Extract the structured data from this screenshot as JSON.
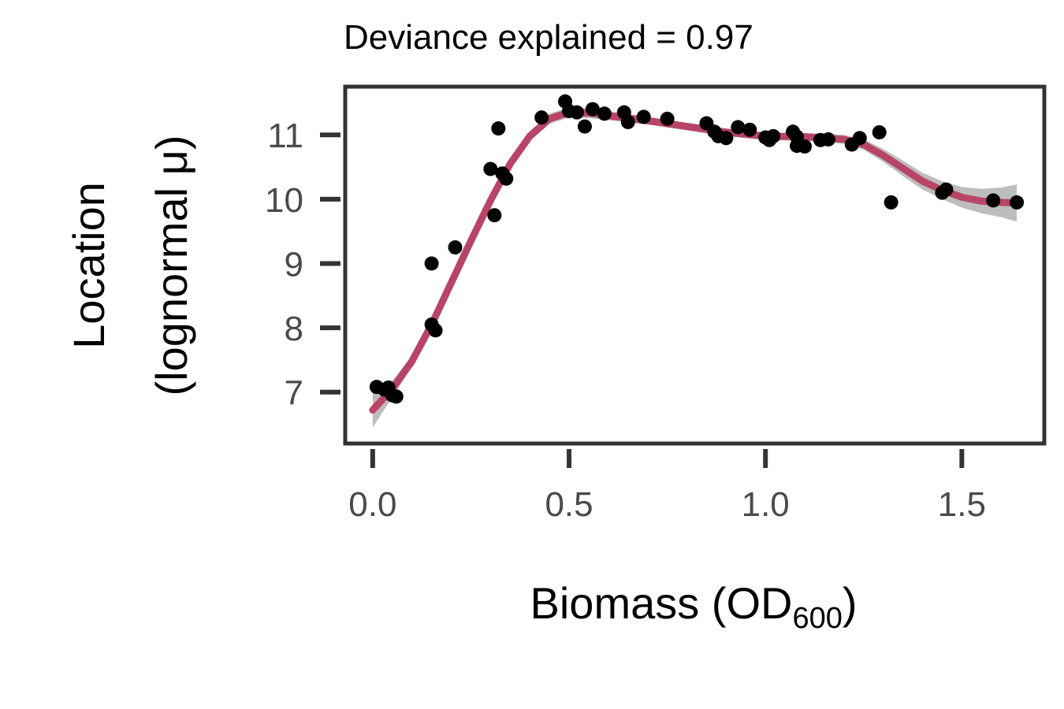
{
  "chart_data": {
    "type": "scatter",
    "title": "Deviance explained = 0.97",
    "xlabel": "Biomass (OD",
    "xlabel_subscript": "600",
    "xlabel_close": ")",
    "ylabel_line1": "Location",
    "ylabel_line2": "(lognormal  μ)",
    "xlim": [
      -0.07,
      1.71
    ],
    "ylim": [
      6.2,
      11.75
    ],
    "xticks": [
      0.0,
      0.5,
      1.0,
      1.5
    ],
    "xtick_labels": [
      "0.0",
      "0.5",
      "1.0",
      "1.5"
    ],
    "yticks": [
      7,
      8,
      9,
      10,
      11
    ],
    "ytick_labels": [
      "7",
      "8",
      "9",
      "10",
      "11"
    ],
    "grid": false,
    "legend": "none",
    "colors": {
      "fit_line": "#b84467",
      "ci_band": "#bdbdbd",
      "points": "#000000",
      "axes": "#333333"
    },
    "fit": {
      "x": [
        0.0,
        0.05,
        0.1,
        0.15,
        0.2,
        0.25,
        0.3,
        0.35,
        0.4,
        0.45,
        0.5,
        0.55,
        0.6,
        0.7,
        0.8,
        0.9,
        1.0,
        1.1,
        1.2,
        1.25,
        1.3,
        1.35,
        1.4,
        1.45,
        1.5,
        1.55,
        1.6,
        1.64
      ],
      "y": [
        6.72,
        7.05,
        7.48,
        8.05,
        8.7,
        9.35,
        9.98,
        10.55,
        10.98,
        11.25,
        11.35,
        11.34,
        11.3,
        11.22,
        11.13,
        11.04,
        10.98,
        10.97,
        10.93,
        10.85,
        10.68,
        10.48,
        10.28,
        10.14,
        10.03,
        9.97,
        9.95,
        9.94
      ],
      "lower": [
        6.45,
        6.92,
        7.4,
        7.98,
        8.63,
        9.28,
        9.9,
        10.47,
        10.9,
        11.17,
        11.27,
        11.26,
        11.23,
        11.16,
        11.07,
        10.98,
        10.92,
        10.91,
        10.86,
        10.77,
        10.58,
        10.36,
        10.15,
        10.0,
        9.87,
        9.78,
        9.72,
        9.65
      ],
      "upper": [
        6.98,
        7.18,
        7.56,
        8.12,
        8.77,
        9.42,
        10.06,
        10.63,
        11.06,
        11.33,
        11.43,
        11.42,
        11.37,
        11.28,
        11.19,
        11.1,
        11.04,
        11.03,
        11.0,
        10.93,
        10.78,
        10.6,
        10.41,
        10.28,
        10.19,
        10.16,
        10.18,
        10.23
      ]
    },
    "points": {
      "x": [
        0.01,
        0.03,
        0.04,
        0.05,
        0.06,
        0.15,
        0.15,
        0.16,
        0.21,
        0.3,
        0.31,
        0.32,
        0.33,
        0.34,
        0.43,
        0.49,
        0.5,
        0.52,
        0.54,
        0.56,
        0.59,
        0.64,
        0.65,
        0.69,
        0.75,
        0.85,
        0.87,
        0.88,
        0.9,
        0.93,
        0.96,
        1.0,
        1.01,
        1.02,
        1.07,
        1.08,
        1.08,
        1.1,
        1.14,
        1.16,
        1.22,
        1.24,
        1.29,
        1.32,
        1.45,
        1.46,
        1.58,
        1.64
      ],
      "y": [
        7.08,
        7.04,
        7.07,
        6.95,
        6.93,
        9.0,
        8.05,
        7.96,
        9.25,
        10.47,
        9.75,
        11.1,
        10.4,
        10.32,
        11.27,
        11.52,
        11.37,
        11.35,
        11.13,
        11.4,
        11.33,
        11.35,
        11.2,
        11.28,
        11.25,
        11.18,
        11.05,
        10.98,
        10.95,
        11.12,
        11.08,
        10.96,
        10.92,
        10.98,
        11.05,
        10.97,
        10.83,
        10.82,
        10.92,
        10.93,
        10.85,
        10.95,
        11.04,
        9.95,
        10.1,
        10.15,
        9.98,
        9.95
      ]
    }
  }
}
